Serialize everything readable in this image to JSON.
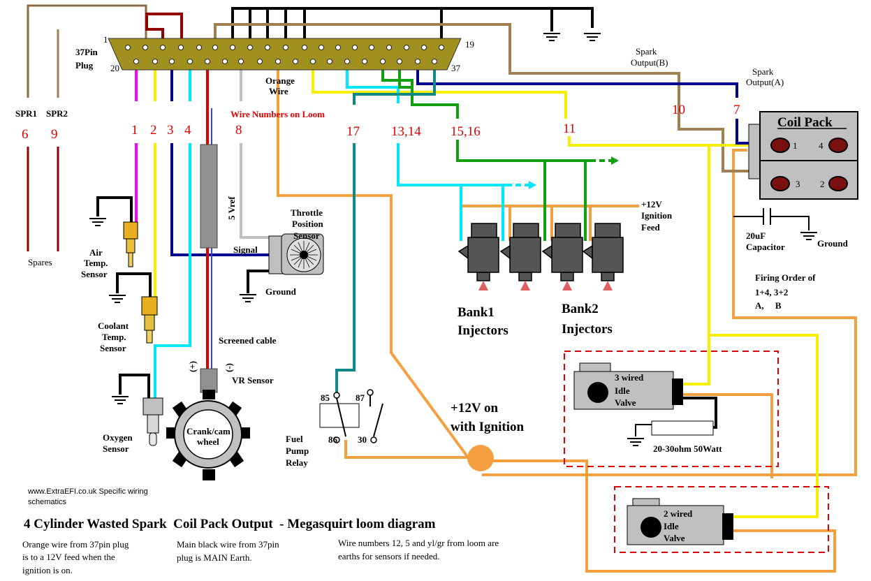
{
  "plug": {
    "title_line1": "37Pin",
    "title_line2": "Plug",
    "pin_1": "1",
    "pin_19": "19",
    "pin_20": "20",
    "pin_37": "37"
  },
  "spares": {
    "spr1": "SPR1",
    "spr2": "SPR2",
    "num_6": "6",
    "num_9": "9",
    "label": "Spares"
  },
  "loom": {
    "title": "Wire Numbers on Loom",
    "orange_wire_line1": "Orange",
    "orange_wire_line2": "Wire",
    "w1": "1",
    "w2": "2",
    "w3": "3",
    "w4": "4",
    "w8": "8",
    "w17": "17",
    "w13_14": "13,14",
    "w15_16": "15,16",
    "w11": "11",
    "w10": "10",
    "w7": "7"
  },
  "spark": {
    "b_line1": "Spark",
    "b_line2": "Output(B)",
    "a_line1": "Spark",
    "a_line2": "Output(A)"
  },
  "coil_pack": {
    "title": "Coil Pack",
    "c1": "1",
    "c2": "2",
    "c3": "3",
    "c4": "4"
  },
  "capacitor": {
    "line1": "20uF",
    "line2": "Capacitor",
    "ground": "Ground"
  },
  "firing": {
    "line1": "Firing Order of",
    "line2": "1+4, 3+2",
    "line3": "A,     B"
  },
  "sensors": {
    "air_line1": "Air",
    "air_line2": "Temp.",
    "air_line3": "Sensor",
    "coolant_line1": "Coolant",
    "coolant_line2": "Temp.",
    "coolant_line3": "Sensor",
    "oxygen_line1": "Oxygen",
    "oxygen_line2": "Sensor",
    "tps_line1": "Throttle",
    "tps_line2": "Position",
    "tps_line3": "Sensor",
    "tps_signal": "Signal",
    "tps_ground": "Ground",
    "vref": "5 Vref",
    "screened": "Screened cable",
    "vr": "VR Sensor",
    "plus": "(+)",
    "minus": "(-)",
    "crank_line1": "Crank/cam",
    "crank_line2": "wheel"
  },
  "injectors": {
    "feed_line1": "+12V",
    "feed_line2": "Ignition",
    "feed_line3": "Feed",
    "bank1_line1": "Bank1",
    "bank1_line2": "Injectors",
    "bank2_line1": "Bank2",
    "bank2_line2": "Injectors"
  },
  "relay": {
    "p85": "85",
    "p87": "87",
    "p86": "86",
    "p30": "30",
    "line1": "Fuel",
    "line2": "Pump",
    "line3": "Relay"
  },
  "ignition": {
    "line1": "+12V on",
    "line2": "with Ignition"
  },
  "idle": {
    "three_line1": "3 wired",
    "three_line2": "Idle",
    "three_line3": "Valve",
    "resistor": "20-30ohm 50Watt",
    "two_line1": "2 wired",
    "two_line2": "Idle",
    "two_line3": "Valve"
  },
  "footer": {
    "site_line1": "www.ExtraEFI.co.uk Specific wiring",
    "site_line2": "schematics",
    "title": "4 Cylinder Wasted Spark  Coil Pack Output  - Megasquirt loom diagram",
    "note1_line1": "Orange wire from 37pin plug",
    "note1_line2": "is to a 12V feed when the",
    "note1_line3": "ignition is on.",
    "note2_line1": "Main black wire from 37pin",
    "note2_line2": "plug is MAIN Earth.",
    "note3_line1": "Wire numbers 12, 5  and yl/gr from loom are",
    "note3_line2": "earths for sensors if needed."
  },
  "colors": {
    "orange": "#f5a040",
    "yellow": "#f5f000",
    "magenta": "#ff00ff",
    "cyan": "#00e8ff",
    "teal": "#108888",
    "green": "#10a010",
    "navy": "#000090",
    "brown": "#a08050",
    "darkred": "#900000",
    "red": "#e00000",
    "grey": "#c0c0c0",
    "plug": "#a09020"
  }
}
